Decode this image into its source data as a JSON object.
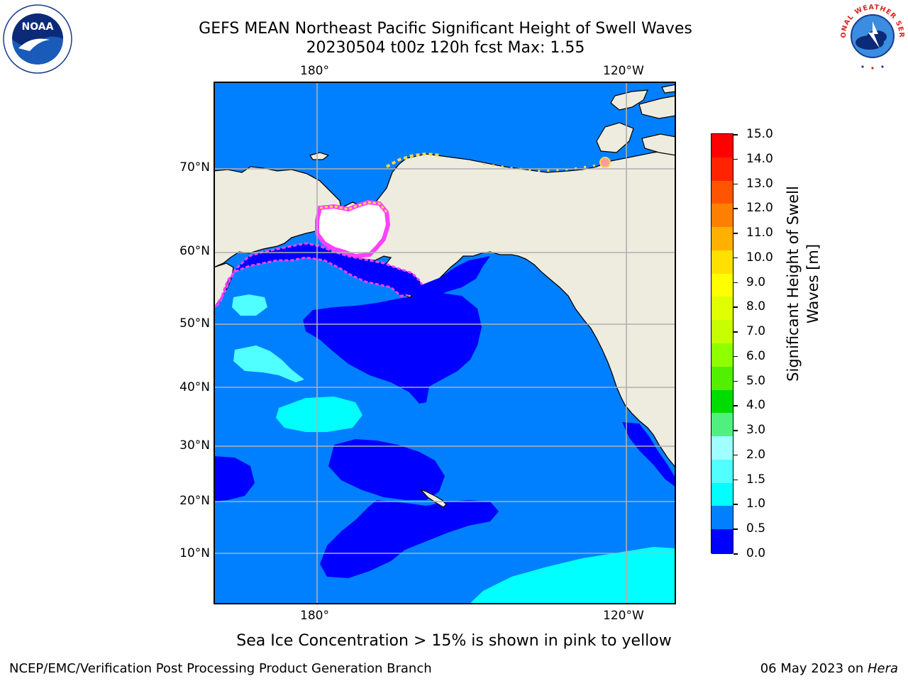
{
  "title_line1": "GEFS MEAN Northeast Pacific Significant Height of Swell Waves",
  "title_line2": "20230504 t00z 120h fcst   Max: 1.55",
  "logos": {
    "left_name": "noaa-logo",
    "left_text": "NOAA",
    "right_name": "nws-logo",
    "right_text": "NATIONAL WEATHER SERVICE"
  },
  "x_ticks_top": [
    "180°",
    "120°W"
  ],
  "x_ticks_bottom": [
    "180°",
    "120°W"
  ],
  "y_ticks": [
    "70°N",
    "60°N",
    "50°N",
    "40°N",
    "30°N",
    "20°N",
    "10°N"
  ],
  "colorbar": {
    "label": "Significant Height of Swell Waves [m]",
    "label_line1": "Significant Height of Swell",
    "label_line2": "Waves [m]",
    "ticks": [
      "15.0",
      "14.0",
      "13.0",
      "12.0",
      "11.0",
      "10.0",
      "9.0",
      "8.0",
      "7.0",
      "6.0",
      "5.0",
      "4.0",
      "3.0",
      "2.0",
      "1.5",
      "1.0",
      "0.5",
      "0.0"
    ],
    "colors": [
      "#ff0000",
      "#ff2400",
      "#ff5500",
      "#ff8000",
      "#ffb000",
      "#ffe000",
      "#ffff00",
      "#e0ff00",
      "#c8ff00",
      "#90ff00",
      "#50f000",
      "#00dc00",
      "#50f080",
      "#a0ffff",
      "#50ffff",
      "#00ffff",
      "#0080ff",
      "#0000ff"
    ]
  },
  "colors": {
    "land": "#eeecdf",
    "ocean_0_05": "#0000ff",
    "ocean_05_10": "#0080ff",
    "ocean_10_15": "#00ffff",
    "ocean_15_20": "#50ffff",
    "grid": "#b0b0b0",
    "ice_pink": "#ff40ff"
  },
  "note": "Sea Ice Concentration > 15% is shown in pink to yellow",
  "footer_left": "NCEP/EMC/Verification Post Processing Product Generation Branch",
  "footer_right_date": "06 May 2023 on ",
  "footer_right_machine": "Hera"
}
